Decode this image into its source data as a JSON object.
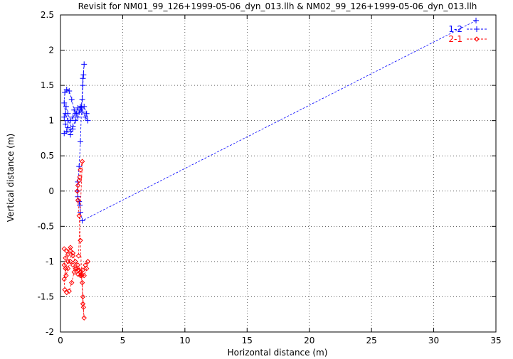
{
  "chart_data": {
    "type": "scatter",
    "title": "Revisit for NM01_99_126+1999-05-06_dyn_013.llh & NM02_99_126+1999-05-06_dyn_013.llh",
    "xlabel": "Horizontal distance (m)",
    "ylabel": "Vertical distance (m)",
    "xlim": [
      0,
      35
    ],
    "ylim": [
      -2,
      2.5
    ],
    "xticks": [
      0,
      5,
      10,
      15,
      20,
      25,
      30,
      35
    ],
    "yticks": [
      -2,
      -1.5,
      -1,
      -0.5,
      0,
      0.5,
      1,
      1.5,
      2,
      2.5
    ],
    "xtick_labels": [
      "0",
      "5",
      "10",
      "15",
      "20",
      "25",
      "30",
      "35"
    ],
    "ytick_labels": [
      "-2",
      "-1.5",
      "-1",
      "-0.5",
      "0",
      "0.5",
      "1",
      "1.5",
      "2",
      "2.5"
    ],
    "grid": true,
    "legend_position": "top-right",
    "series": [
      {
        "name": "1-2",
        "color": "#0000ff",
        "marker": "plus",
        "line": "dashed",
        "x": [
          0.3,
          0.5,
          0.8,
          1.0,
          0.6,
          0.4,
          0.3,
          0.35,
          0.5,
          0.7,
          0.9,
          1.1,
          1.3,
          1.5,
          1.7,
          1.9,
          2.1,
          2.2,
          2.0,
          1.8,
          1.6,
          1.4,
          1.2,
          1.0,
          0.8,
          0.6,
          0.45,
          0.3,
          0.4,
          0.6,
          0.8,
          1.0,
          1.2,
          1.4,
          1.6,
          1.75,
          1.8,
          1.85,
          1.9,
          1.8,
          1.7,
          1.6,
          1.5,
          1.4,
          1.35,
          1.4,
          1.5,
          1.55,
          1.6,
          1.75,
          33.4
        ],
        "y": [
          0.82,
          0.85,
          0.8,
          0.88,
          1.0,
          1.1,
          1.25,
          1.4,
          1.44,
          1.42,
          1.3,
          1.15,
          1.1,
          1.12,
          1.18,
          1.2,
          1.1,
          1.0,
          1.05,
          1.12,
          1.2,
          1.18,
          1.1,
          1.05,
          1.0,
          1.1,
          1.2,
          1.05,
          0.95,
          0.9,
          0.85,
          0.92,
          1.0,
          1.05,
          1.15,
          1.3,
          1.5,
          1.65,
          1.8,
          1.6,
          1.2,
          0.7,
          0.35,
          0.13,
          0.0,
          -0.08,
          -0.15,
          -0.2,
          -0.3,
          -0.42,
          2.42
        ]
      },
      {
        "name": "2-1",
        "color": "#ff0000",
        "marker": "diamond",
        "line": "dashed",
        "x": [
          0.3,
          0.5,
          0.8,
          1.0,
          0.6,
          0.4,
          0.3,
          0.35,
          0.5,
          0.7,
          0.9,
          1.1,
          1.3,
          1.5,
          1.7,
          1.9,
          2.1,
          2.2,
          2.0,
          1.8,
          1.6,
          1.4,
          1.2,
          1.0,
          0.8,
          0.6,
          0.45,
          0.3,
          0.4,
          0.6,
          0.8,
          1.0,
          1.2,
          1.4,
          1.6,
          1.75,
          1.8,
          1.85,
          1.9,
          1.8,
          1.7,
          1.6,
          1.5,
          1.4,
          1.35,
          1.4,
          1.5,
          1.55,
          1.6,
          1.75,
          1.45
        ],
        "y": [
          -0.82,
          -0.85,
          -0.8,
          -0.88,
          -1.0,
          -1.1,
          -1.25,
          -1.4,
          -1.44,
          -1.42,
          -1.3,
          -1.15,
          -1.1,
          -1.12,
          -1.18,
          -1.2,
          -1.1,
          -1.0,
          -1.05,
          -1.12,
          -1.2,
          -1.18,
          -1.1,
          -1.05,
          -1.0,
          -1.1,
          -1.2,
          -1.05,
          -0.95,
          -0.9,
          -0.85,
          -0.92,
          -1.0,
          -1.05,
          -1.15,
          -1.3,
          -1.5,
          -1.65,
          -1.8,
          -1.6,
          -1.2,
          -0.7,
          -0.35,
          -0.13,
          0.0,
          0.08,
          0.15,
          0.2,
          0.3,
          0.42,
          -0.92
        ]
      }
    ]
  }
}
